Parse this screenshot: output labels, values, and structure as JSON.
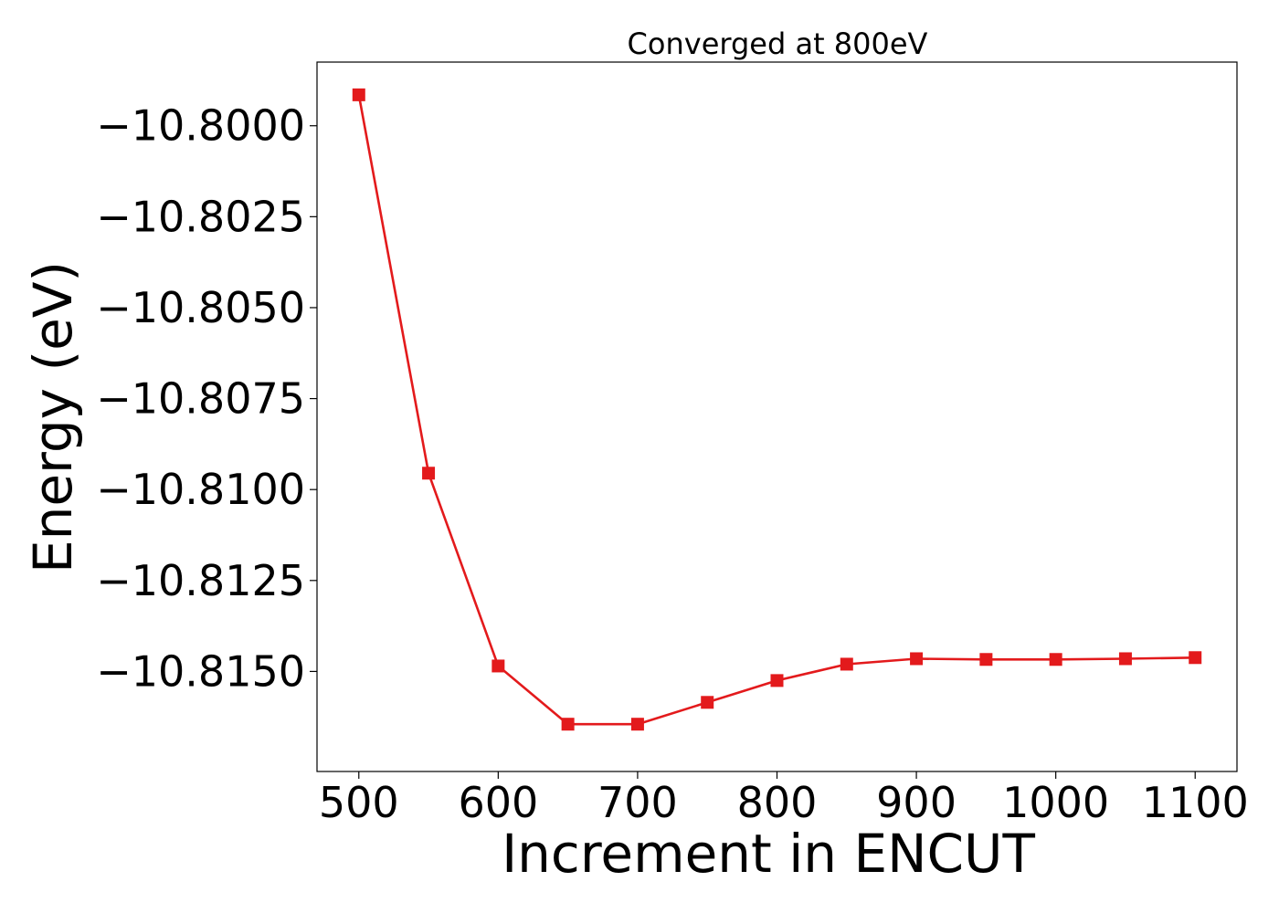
{
  "chart_data": {
    "type": "line",
    "title": "Converged at 800eV",
    "xlabel": "Increment in ENCUT",
    "ylabel": "Energy (eV)",
    "xlim": [
      470,
      1130
    ],
    "ylim": [
      -10.81775,
      -10.79825
    ],
    "xticks": [
      500,
      600,
      700,
      800,
      900,
      1000,
      1100
    ],
    "xtick_labels": [
      "500",
      "600",
      "700",
      "800",
      "900",
      "1000",
      "1100"
    ],
    "yticks": [
      -10.8,
      -10.8025,
      -10.805,
      -10.8075,
      -10.81,
      -10.8125,
      -10.815
    ],
    "ytick_labels": [
      "−10.8000",
      "−10.8025",
      "−10.8050",
      "−10.8075",
      "−10.8100",
      "−10.8125",
      "−10.8150"
    ],
    "grid": false,
    "legend": "none",
    "series": [
      {
        "color": "#e31a1c",
        "marker": "square",
        "x": [
          500,
          550,
          600,
          650,
          700,
          750,
          800,
          850,
          900,
          950,
          1000,
          1050,
          1100
        ],
        "y": [
          -10.79915,
          -10.80955,
          -10.81485,
          -10.81645,
          -10.81645,
          -10.81585,
          -10.81525,
          -10.8148,
          -10.81465,
          -10.81467,
          -10.81467,
          -10.81465,
          -10.81462
        ]
      }
    ]
  }
}
